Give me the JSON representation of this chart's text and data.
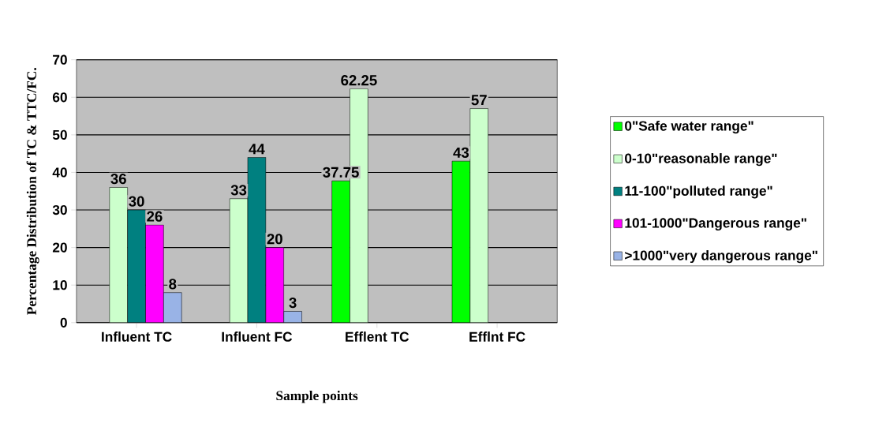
{
  "chart_data": {
    "type": "bar",
    "xlabel": "Sample points",
    "ylabel": "Percentage Distribution of TC & TTC/FC.",
    "categories": [
      "Influent TC",
      "Influent FC",
      "Efflent TC",
      "Efflnt FC"
    ],
    "series": [
      {
        "name": "0\"Safe water range\"",
        "color": "#00ff00",
        "values": [
          null,
          null,
          37.75,
          43
        ],
        "value_labels": [
          null,
          null,
          "37.75",
          "43"
        ]
      },
      {
        "name": "0-10\"reasonable range\"",
        "color": "#ccffcc",
        "values": [
          36,
          33,
          62.25,
          57
        ],
        "value_labels": [
          "36",
          "33",
          "62.25",
          "57"
        ]
      },
      {
        "name": "11-100\"polluted range\"",
        "color": "#008080",
        "values": [
          30,
          44,
          null,
          null
        ],
        "value_labels": [
          "30",
          "44",
          null,
          null
        ]
      },
      {
        "name": "101-1000\"Dangerous range\"",
        "color": "#ff00ff",
        "values": [
          26,
          20,
          null,
          null
        ],
        "value_labels": [
          "26",
          "20",
          null,
          null
        ]
      },
      {
        "name": ">1000\"very dangerous range\"",
        "color": "#99b3e6",
        "values": [
          8,
          3,
          null,
          null
        ],
        "value_labels": [
          "8",
          "3",
          null,
          null
        ]
      }
    ],
    "ylim": [
      0,
      70
    ],
    "yticks": [
      0,
      10,
      20,
      30,
      40,
      50,
      60,
      70
    ],
    "grid": "y",
    "legend": "right"
  }
}
